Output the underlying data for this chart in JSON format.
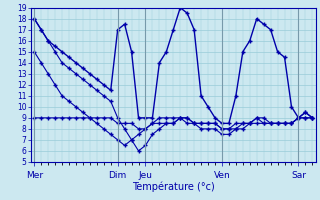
{
  "xlabel": "Température (°c)",
  "background_color": "#cce8f0",
  "grid_color": "#99ccd9",
  "line_color": "#0000aa",
  "ylim": [
    5,
    19
  ],
  "yticks": [
    5,
    6,
    7,
    8,
    9,
    10,
    11,
    12,
    13,
    14,
    15,
    16,
    17,
    18,
    19
  ],
  "day_labels": [
    "Mer",
    "Dim",
    "Jeu",
    "Ven",
    "Sar"
  ],
  "day_positions": [
    0,
    12,
    16,
    27,
    38
  ],
  "num_points": 41,
  "series1": [
    18,
    17,
    16,
    15.5,
    15,
    14.5,
    14,
    13.5,
    13,
    12.5,
    12,
    11.5,
    17,
    17.5,
    15,
    9,
    9,
    9,
    14,
    15,
    17,
    19,
    18.5,
    17,
    11,
    10,
    9,
    8.5,
    8.5,
    11,
    15,
    16,
    18,
    17.5,
    17,
    15,
    14.5,
    10,
    9,
    9.5,
    9
  ],
  "series2": [
    15,
    14,
    13,
    12,
    11,
    10.5,
    10,
    9.5,
    9,
    8.5,
    8,
    7.5,
    7,
    6.5,
    7,
    7.5,
    8,
    8.5,
    9,
    9,
    9,
    9,
    9,
    8.5,
    8,
    8,
    8,
    7.5,
    7.5,
    8,
    8.5,
    8.5,
    8.5,
    8.5,
    8.5,
    8.5,
    8.5,
    8.5,
    9,
    9,
    9
  ],
  "series3": [
    9,
    9,
    9,
    9,
    9,
    9,
    9,
    9,
    9,
    9,
    9,
    9,
    8.5,
    8.5,
    8.5,
    8,
    8,
    8.5,
    8.5,
    8.5,
    8.5,
    9,
    8.5,
    8.5,
    8.5,
    8.5,
    8.5,
    8,
    8,
    8,
    8,
    8.5,
    9,
    8.5,
    8.5,
    8.5,
    8.5,
    8.5,
    9,
    9,
    9
  ],
  "series4": [
    18,
    17,
    16,
    15,
    14,
    13.5,
    13,
    12.5,
    12,
    11.5,
    11,
    10.5,
    9,
    8,
    7,
    6,
    6.5,
    7.5,
    8,
    8.5,
    8.5,
    9,
    9,
    8.5,
    8.5,
    8.5,
    8.5,
    8,
    8,
    8.5,
    8.5,
    8.5,
    9,
    9,
    8.5,
    8.5,
    8.5,
    8.5,
    9,
    9.5,
    9
  ]
}
